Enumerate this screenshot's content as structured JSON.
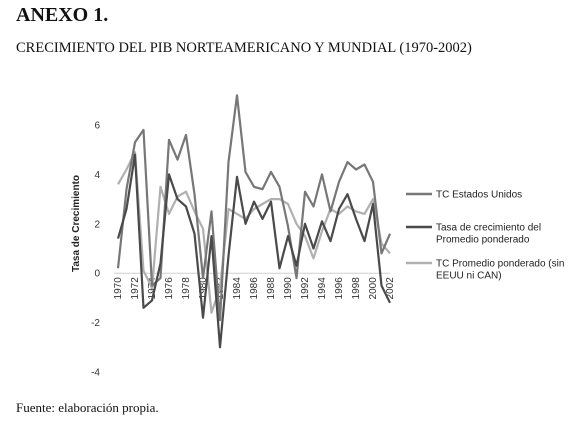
{
  "header": {
    "annex": "ANEXO 1.",
    "title_main": "CRECIMIENTO DEL PIB NORTEAMERICANO Y MUNDIAL",
    "title_period": "(1970-2002)"
  },
  "footer": {
    "source": "Fuente: elaboración propia."
  },
  "chart_data": {
    "type": "line",
    "ylabel": "Tasa de Crecimiento",
    "xlabel": "",
    "ylim": [
      -4,
      6
    ],
    "yticks": [
      -4,
      -2,
      0,
      2,
      4,
      6
    ],
    "x": [
      1970,
      1971,
      1972,
      1973,
      1974,
      1975,
      1976,
      1977,
      1978,
      1979,
      1980,
      1981,
      1982,
      1983,
      1984,
      1985,
      1986,
      1987,
      1988,
      1989,
      1990,
      1991,
      1992,
      1993,
      1994,
      1995,
      1996,
      1997,
      1998,
      1999,
      2000,
      2001,
      2002
    ],
    "xticks": [
      "1970",
      "1972",
      "1974",
      "1976",
      "1978",
      "1980",
      "1982",
      "1984",
      "1986",
      "1988",
      "1990",
      "1992",
      "1994",
      "1996",
      "1998",
      "2000",
      "2002"
    ],
    "legend_position": "right",
    "grid": false,
    "series": [
      {
        "name": "TC Estados Unidos",
        "color": "#777777",
        "values": [
          0.2,
          3.4,
          5.3,
          5.8,
          -0.5,
          -0.2,
          5.4,
          4.6,
          5.6,
          3.2,
          -0.2,
          2.5,
          -1.9,
          4.5,
          7.2,
          4.1,
          3.5,
          3.4,
          4.1,
          3.5,
          1.9,
          -0.2,
          3.3,
          2.7,
          4.0,
          2.5,
          3.7,
          4.5,
          4.2,
          4.4,
          3.7,
          0.8,
          1.6
        ]
      },
      {
        "name": "Tasa de crecimiento del Promedio ponderado",
        "color": "#4a4a4a",
        "values": [
          1.4,
          2.6,
          4.8,
          -1.4,
          -1.1,
          0.4,
          4.0,
          3.0,
          2.7,
          1.6,
          -1.8,
          1.5,
          -3.0,
          0.7,
          3.9,
          2.0,
          2.9,
          2.2,
          2.9,
          0.2,
          1.5,
          0.3,
          2.0,
          1.0,
          2.1,
          1.3,
          2.6,
          3.2,
          2.2,
          1.3,
          2.8,
          -0.5,
          -1.2
        ]
      },
      {
        "name": "TC Promedio ponderado (sin EEUU ni CAN)",
        "color": "#b0b0b0",
        "values": [
          3.6,
          4.2,
          4.9,
          0.1,
          -0.6,
          3.5,
          2.4,
          3.1,
          3.3,
          2.5,
          1.8,
          -1.6,
          -0.6,
          2.6,
          2.4,
          2.2,
          2.6,
          2.8,
          3.0,
          3.0,
          2.8,
          2.0,
          1.5,
          0.6,
          1.7,
          2.6,
          2.4,
          2.7,
          2.5,
          2.4,
          3.0,
          1.2,
          0.8
        ]
      }
    ],
    "legend": [
      {
        "lines": [
          "TC Estados Unidos"
        ]
      },
      {
        "lines": [
          "Tasa de crecimiento del",
          "Promedio ponderado"
        ]
      },
      {
        "lines": [
          "TC Promedio ponderado (sin",
          "EEUU ni CAN)"
        ]
      }
    ]
  }
}
